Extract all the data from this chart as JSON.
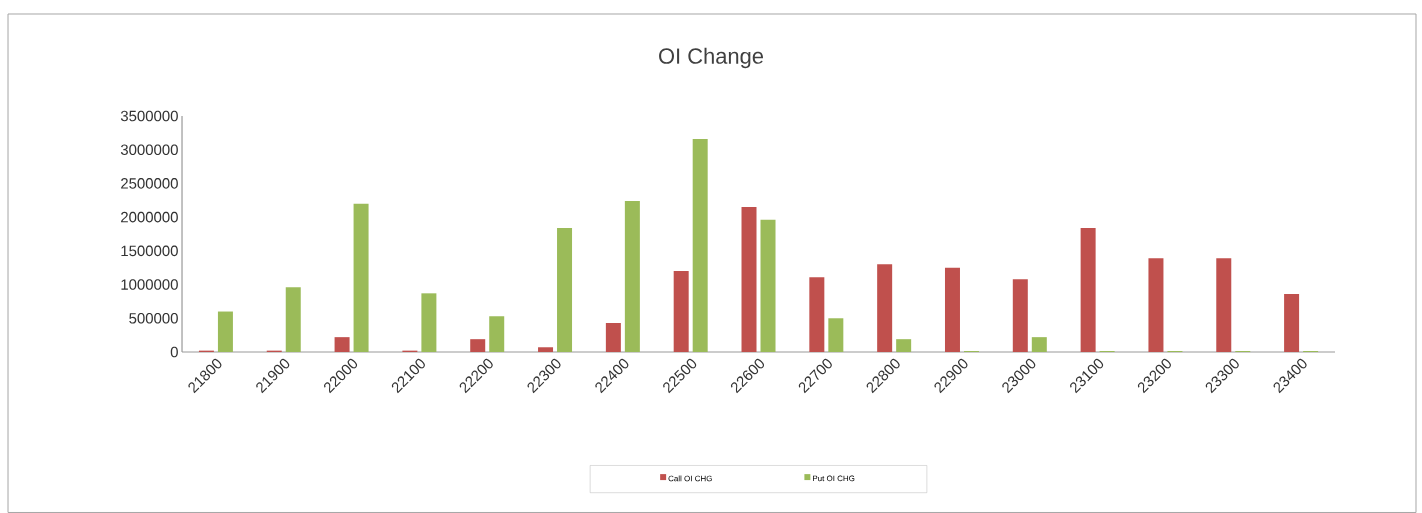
{
  "chart_data": {
    "type": "bar",
    "title": "OI Change",
    "categories": [
      "21800",
      "21900",
      "22000",
      "22100",
      "22200",
      "22300",
      "22400",
      "22500",
      "22600",
      "22700",
      "22800",
      "22900",
      "23000",
      "23100",
      "23200",
      "23300",
      "23400"
    ],
    "series": [
      {
        "name": "Call OI CHG",
        "color": "#c0504d",
        "values": [
          20000,
          20000,
          220000,
          20000,
          190000,
          70000,
          430000,
          1200000,
          2150000,
          1110000,
          1300000,
          1250000,
          1080000,
          1840000,
          1390000,
          1390000,
          860000
        ]
      },
      {
        "name": "Put OI CHG",
        "color": "#9bbb59",
        "values": [
          600000,
          960000,
          2200000,
          870000,
          530000,
          1840000,
          2240000,
          3160000,
          1960000,
          500000,
          190000,
          15000,
          220000,
          15000,
          15000,
          15000,
          15000
        ]
      }
    ],
    "ylim": [
      0,
      3500000
    ],
    "yticks": [
      0,
      500000,
      1000000,
      1500000,
      2000000,
      2500000,
      3000000,
      3500000
    ],
    "grid": false,
    "legend": "bottom"
  }
}
